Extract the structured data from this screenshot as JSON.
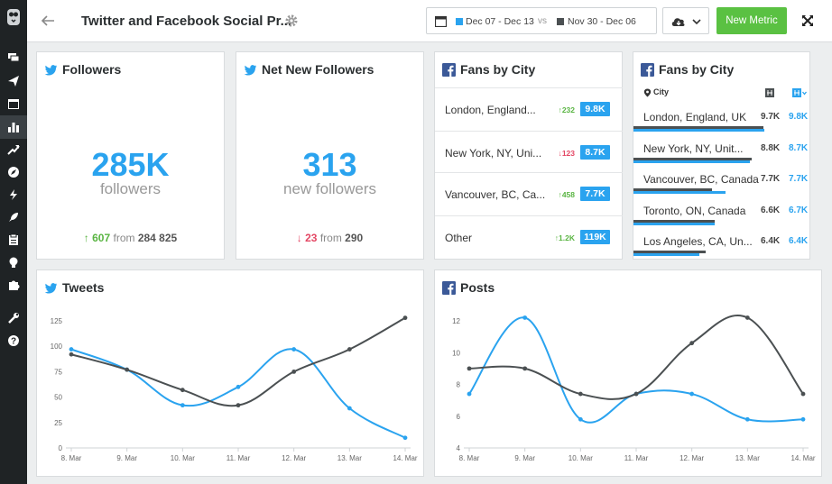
{
  "header": {
    "title": "Twitter and Facebook Social Pr...",
    "date_range_current": "Dec 07 - Dec 13",
    "vs": "vs",
    "date_range_previous": "Nov 30 - Dec 06",
    "new_metric_label": "New Metric"
  },
  "colors": {
    "accent_blue": "#2aa3ef",
    "compare_gray": "#4b5052",
    "green": "#5ac142",
    "red": "#e44764"
  },
  "sidebar": {
    "icons": [
      "owl-logo-icon",
      "chat-icon",
      "paper-plane-icon",
      "calendar-icon",
      "bar-chart-icon",
      "trending-icon",
      "compass-icon",
      "bolt-icon",
      "rocket-icon",
      "clipboard-icon",
      "bulb-icon",
      "puzzle-icon",
      "wrench-icon",
      "help-icon"
    ]
  },
  "cards": {
    "followers": {
      "title": "Followers",
      "value": "285K",
      "label": "followers",
      "change": "607",
      "from_text": "from",
      "previous": "284 825"
    },
    "net_new": {
      "title": "Net New Followers",
      "value": "313",
      "label": "new followers",
      "change": "23",
      "from_text": "from",
      "previous": "290"
    },
    "fans_city": {
      "title": "Fans by City",
      "rows": [
        {
          "name": "London, England...",
          "change": "232",
          "dir": "up",
          "value": "9.8K"
        },
        {
          "name": "New York, NY, Uni...",
          "change": "123",
          "dir": "down",
          "value": "8.7K"
        },
        {
          "name": "Vancouver, BC, Ca...",
          "change": "458",
          "dir": "up",
          "value": "7.7K"
        },
        {
          "name": "Other",
          "change": "1.2K",
          "dir": "up",
          "value": "119K"
        }
      ]
    },
    "fans_city_compare": {
      "title": "Fans by City",
      "col_city": "City",
      "rows": [
        {
          "name": "London, England, UK",
          "prev": "9.7K",
          "cur": "9.8K",
          "prev_frac": 0.99,
          "cur_frac": 1.0
        },
        {
          "name": "New York, NY, Unit...",
          "prev": "8.8K",
          "cur": "8.7K",
          "prev_frac": 0.9,
          "cur_frac": 0.89
        },
        {
          "name": "Vancouver, BC, Canada",
          "prev": "7.7K",
          "cur": "7.7K",
          "prev_frac": 0.6,
          "cur_frac": 0.7
        },
        {
          "name": "Toronto, ON, Canada",
          "prev": "6.6K",
          "cur": "6.7K",
          "prev_frac": 0.62,
          "cur_frac": 0.62
        },
        {
          "name": "Los Angeles, CA, Un...",
          "prev": "6.4K",
          "cur": "6.4K",
          "prev_frac": 0.55,
          "cur_frac": 0.5
        }
      ]
    }
  },
  "chart_data": [
    {
      "type": "line",
      "title": "Tweets",
      "categories": [
        "8. Mar",
        "9. Mar",
        "10. Mar",
        "11. Mar",
        "12. Mar",
        "13. Mar",
        "14. Mar"
      ],
      "yticks": [
        0,
        25,
        50,
        75,
        100,
        125
      ],
      "ylim": [
        0,
        125
      ],
      "series": [
        {
          "values": [
            97,
            77,
            42,
            60,
            97,
            39,
            10
          ],
          "color": "#2aa3ef"
        },
        {
          "values": [
            92,
            77,
            57,
            42,
            75,
            97,
            128
          ],
          "color": "#4b5052"
        }
      ]
    },
    {
      "type": "line",
      "title": "Posts",
      "categories": [
        "8. Mar",
        "9. Mar",
        "10. Mar",
        "11. Mar",
        "12. Mar",
        "13. Mar",
        "14. Mar"
      ],
      "yticks": [
        4,
        6,
        8,
        10,
        12
      ],
      "ylim": [
        4,
        12
      ],
      "series": [
        {
          "values": [
            7.4,
            12.2,
            5.8,
            7.4,
            7.4,
            5.8,
            5.8
          ],
          "color": "#2aa3ef"
        },
        {
          "values": [
            9.0,
            9.0,
            7.4,
            7.4,
            10.6,
            12.2,
            7.4
          ],
          "color": "#4b5052"
        }
      ]
    }
  ]
}
